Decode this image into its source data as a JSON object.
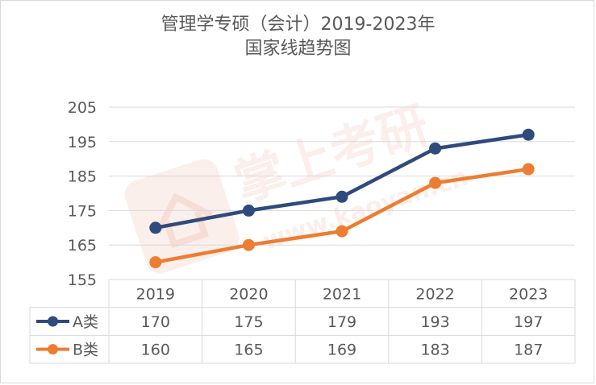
{
  "title": {
    "line1": "管理学专硕（会计）2019-2023年",
    "line2": "国家线趋势图"
  },
  "watermark": {
    "text": "掌上考研",
    "url": "www.kaoyan.cn"
  },
  "colors": {
    "series_a": "#2f4b7c",
    "series_b": "#ed7d31",
    "grid": "#d9d9d9",
    "text": "#595959"
  },
  "chart_data": {
    "type": "line",
    "title": "管理学专硕（会计）2019-2023年 国家线趋势图",
    "categories": [
      "2019",
      "2020",
      "2021",
      "2022",
      "2023"
    ],
    "series": [
      {
        "name": "A类",
        "values": [
          170,
          175,
          179,
          193,
          197
        ]
      },
      {
        "name": "B类",
        "values": [
          160,
          165,
          169,
          183,
          187
        ]
      }
    ],
    "yticks": [
      155,
      165,
      175,
      185,
      195,
      205
    ],
    "ylim": [
      155,
      205
    ],
    "grid": true,
    "legend": "data-table-left",
    "data_table": true
  }
}
